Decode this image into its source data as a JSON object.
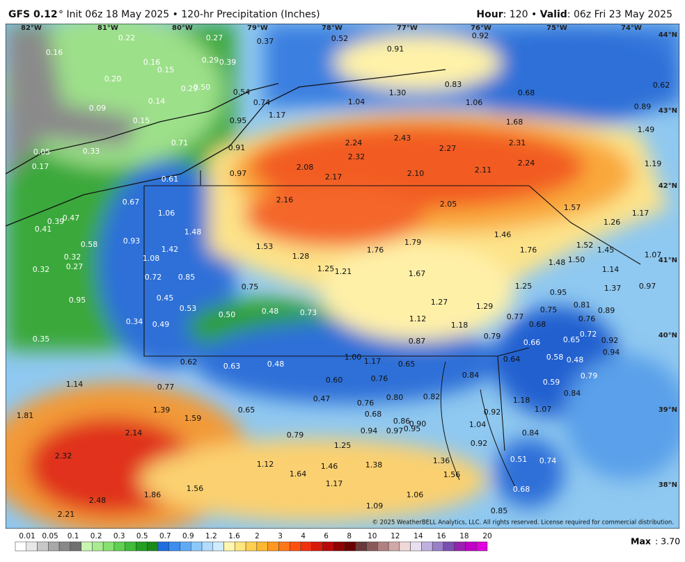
{
  "header": {
    "model": "GFS 0.12",
    "run": "° Init 06z 18 May 2025 • 120-hr Precipitation (Inches)",
    "hour_label": "Hour",
    "hour_value": ": 120 • ",
    "valid_label": "Valid",
    "valid_value": ": 06z Fri 23 May 2025"
  },
  "map": {
    "longitudes": [
      "82°W",
      "81°W",
      "80°W",
      "79°W",
      "78°W",
      "77°W",
      "76°W",
      "75°W",
      "74°W"
    ],
    "latitudes": [
      "44°N",
      "43°N",
      "42°N",
      "41°N",
      "40°N",
      "39°N",
      "38°N"
    ],
    "labels": [
      "0.16",
      "0.22",
      "0.27",
      "0.37",
      "0.52",
      "0.91",
      "0.92",
      "0.16",
      "0.15",
      "0.29",
      "0.39",
      "0.20",
      "0.29",
      "0.50",
      "0.54",
      "0.74",
      "1.30",
      "0.83",
      "0.68",
      "0.62",
      "0.09",
      "0.14",
      "1.04",
      "1.06",
      "0.89",
      "0.15",
      "1.17",
      "0.95",
      "1.68",
      "1.49",
      "0.05",
      "0.33",
      "0.71",
      "0.91",
      "2.24",
      "2.43",
      "2.27",
      "2.31",
      "0.17",
      "2.32",
      "2.08",
      "0.97",
      "2.10",
      "2.11",
      "2.24",
      "1.19",
      "0.61",
      "2.17",
      "0.67",
      "2.16",
      "2.05",
      "1.57",
      "1.06",
      "0.47",
      "0.39",
      "1.17",
      "1.26",
      "0.41",
      "1.48",
      "1.46",
      "0.58",
      "0.93",
      "1.42",
      "1.53",
      "1.76",
      "1.79",
      "1.76",
      "1.52",
      "1.45",
      "0.32",
      "1.08",
      "1.28",
      "1.50",
      "1.48",
      "1.07",
      "0.32",
      "0.27",
      "1.25",
      "1.21",
      "1.67",
      "1.14",
      "0.72",
      "0.85",
      "0.75",
      "1.25",
      "0.95",
      "1.37",
      "0.97",
      "0.95",
      "0.45",
      "1.27",
      "1.29",
      "0.81",
      "0.75",
      "0.89",
      "0.53",
      "0.50",
      "0.48",
      "0.73",
      "1.12",
      "0.77",
      "0.76",
      "0.34",
      "0.49",
      "1.18",
      "0.68",
      "0.35",
      "0.87",
      "0.79",
      "0.72",
      "0.66",
      "0.65",
      "0.92",
      "1.00",
      "1.17",
      "0.65",
      "0.62",
      "0.63",
      "0.48",
      "0.94",
      "0.64",
      "0.58",
      "0.48",
      "0.60",
      "0.76",
      "0.84",
      "0.59",
      "0.79",
      "1.14",
      "0.77",
      "0.47",
      "0.80",
      "0.82",
      "0.84",
      "0.76",
      "1.18",
      "1.81",
      "1.39",
      "0.65",
      "0.68",
      "0.92",
      "1.07",
      "1.59",
      "0.86",
      "0.90",
      "0.95",
      "0.97",
      "0.94",
      "1.04",
      "2.14",
      "0.79",
      "0.84",
      "0.92",
      "1.25",
      "2.32",
      "0.51",
      "0.74",
      "1.12",
      "1.46",
      "1.38",
      "1.36",
      "1.64",
      "1.56",
      "1.56",
      "1.17",
      "1.86",
      "0.68",
      "2.48",
      "1.06",
      "1.09",
      "0.85",
      "2.21"
    ]
  },
  "legend": {
    "labels": [
      "0.01",
      "0.05",
      "0.1",
      "0.2",
      "0.3",
      "0.5",
      "0.7",
      "0.9",
      "1.2",
      "1.6",
      "2",
      "3",
      "4",
      "6",
      "8",
      "10",
      "12",
      "14",
      "16",
      "18",
      "20"
    ]
  },
  "footer": {
    "copyright": "© 2025 WeatherBELL Analytics, LLC. All rights reserved. License required for commercial distribution.",
    "max_label": "Max",
    "max_value": ": 3.70"
  }
}
